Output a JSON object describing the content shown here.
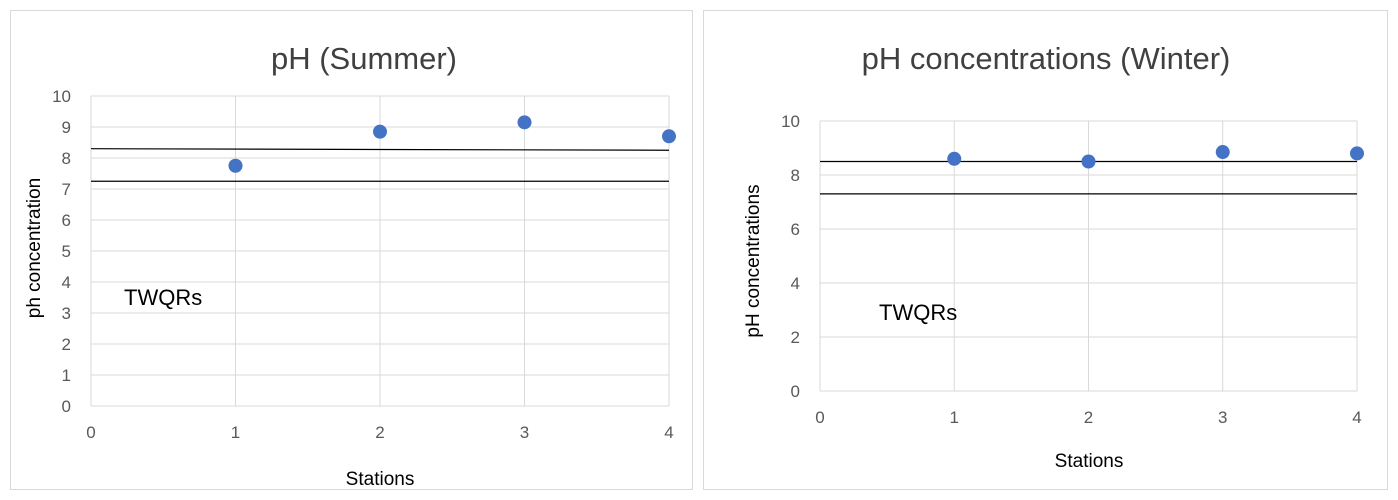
{
  "chart_data": [
    {
      "type": "scatter",
      "title": "pH (Summer)",
      "xlabel": "Stations",
      "ylabel": "ph concentration",
      "xlim": [
        0,
        4
      ],
      "ylim": [
        0,
        10
      ],
      "xticks": [
        "0",
        "1",
        "2",
        "3",
        "4"
      ],
      "yticks": [
        "0",
        "1",
        "2",
        "3",
        "4",
        "5",
        "6",
        "7",
        "8",
        "9",
        "10"
      ],
      "grid": true,
      "series": [
        {
          "x": [
            1,
            2,
            3,
            4
          ],
          "y": [
            7.75,
            8.85,
            9.15,
            8.7
          ],
          "color": "#4472c4"
        }
      ],
      "reference_lines": [
        {
          "y_start": 8.3,
          "y_end": 8.25
        },
        {
          "y_start": 7.25,
          "y_end": 7.25
        }
      ],
      "annotations": [
        {
          "text": "TWQRs"
        }
      ]
    },
    {
      "type": "scatter",
      "title": "pH concentrations (Winter)",
      "xlabel": "Stations",
      "ylabel": "pH concentrations",
      "xlim": [
        0,
        4
      ],
      "ylim": [
        0,
        10
      ],
      "xticks": [
        "0",
        "1",
        "2",
        "3",
        "4"
      ],
      "yticks": [
        "0",
        "2",
        "4",
        "6",
        "8",
        "10"
      ],
      "grid": true,
      "series": [
        {
          "x": [
            1,
            2,
            3,
            4
          ],
          "y": [
            8.6,
            8.5,
            8.85,
            8.8
          ],
          "color": "#4472c4"
        }
      ],
      "reference_lines": [
        {
          "y_start": 8.5,
          "y_end": 8.5
        },
        {
          "y_start": 7.3,
          "y_end": 7.3
        }
      ],
      "annotations": [
        {
          "text": "TWQRs"
        }
      ]
    }
  ]
}
